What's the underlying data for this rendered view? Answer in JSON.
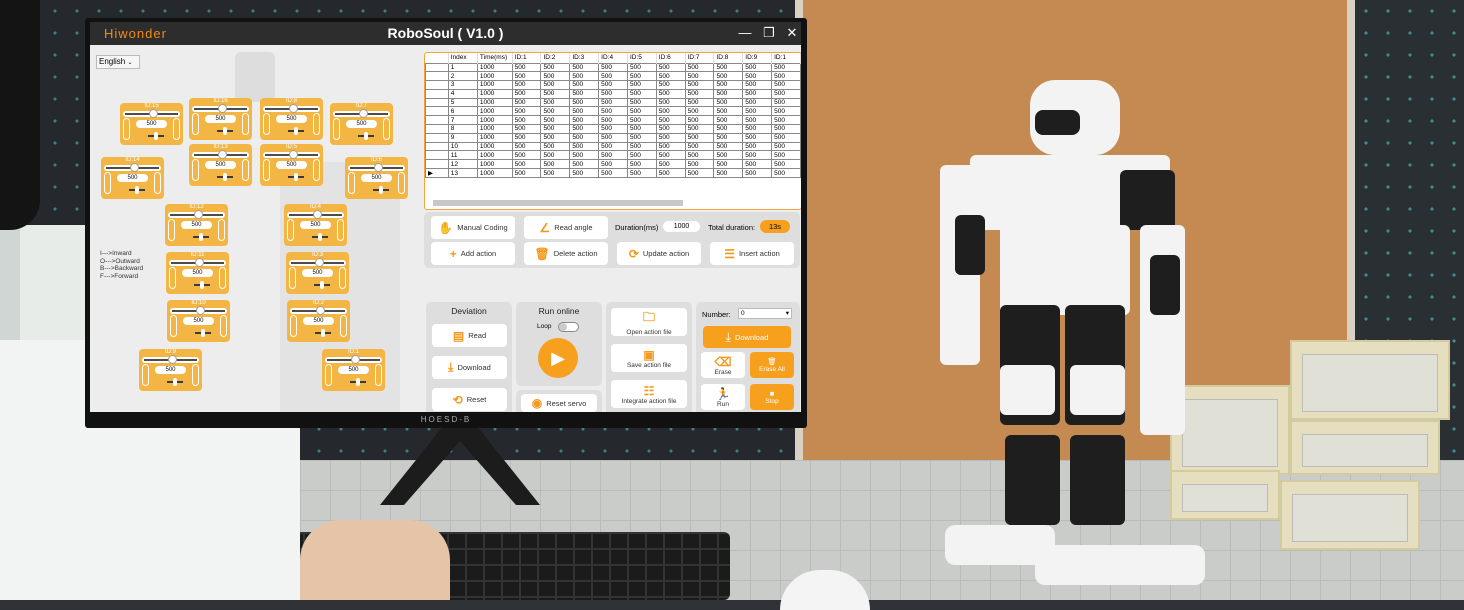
{
  "window": {
    "logo": "Hiwonder",
    "title": "RoboSoul ( V1.0 )",
    "controls": [
      "—",
      "❐",
      "✕"
    ]
  },
  "language": "English",
  "servos": [
    {
      "id": "ID:15",
      "value": "500"
    },
    {
      "id": "ID:16",
      "value": "500"
    },
    {
      "id": "ID:8",
      "value": "500"
    },
    {
      "id": "ID:7",
      "value": "500"
    },
    {
      "id": "ID:14",
      "value": "500"
    },
    {
      "id": "ID:13",
      "value": "500"
    },
    {
      "id": "ID:5",
      "value": "500"
    },
    {
      "id": "ID:6",
      "value": "500"
    },
    {
      "id": "ID:12",
      "value": "500"
    },
    {
      "id": "ID:4",
      "value": "500"
    },
    {
      "id": "ID:11",
      "value": "500"
    },
    {
      "id": "ID:3",
      "value": "500"
    },
    {
      "id": "ID:10",
      "value": "500"
    },
    {
      "id": "ID:2",
      "value": "500"
    },
    {
      "id": "ID:9",
      "value": "500"
    },
    {
      "id": "ID:1",
      "value": "500"
    }
  ],
  "legend": [
    "I--->Inward",
    "O--->Outward",
    "B--->Backward",
    "F--->Forward"
  ],
  "table": {
    "columns": [
      "",
      "Index",
      "Time(ms)",
      "ID:1",
      "ID:2",
      "ID:3",
      "ID:4",
      "ID:5",
      "ID:6",
      "ID:7",
      "ID:8",
      "ID:9",
      "ID:1"
    ],
    "rows": [
      [
        "",
        "1",
        "1000",
        "500",
        "500",
        "500",
        "500",
        "500",
        "500",
        "500",
        "500",
        "500",
        "500"
      ],
      [
        "",
        "2",
        "1000",
        "500",
        "500",
        "500",
        "500",
        "500",
        "500",
        "500",
        "500",
        "500",
        "500"
      ],
      [
        "",
        "3",
        "1000",
        "500",
        "500",
        "500",
        "500",
        "500",
        "500",
        "500",
        "500",
        "500",
        "500"
      ],
      [
        "",
        "4",
        "1000",
        "500",
        "500",
        "500",
        "500",
        "500",
        "500",
        "500",
        "500",
        "500",
        "500"
      ],
      [
        "",
        "5",
        "1000",
        "500",
        "500",
        "500",
        "500",
        "500",
        "500",
        "500",
        "500",
        "500",
        "500"
      ],
      [
        "",
        "6",
        "1000",
        "500",
        "500",
        "500",
        "500",
        "500",
        "500",
        "500",
        "500",
        "500",
        "500"
      ],
      [
        "",
        "7",
        "1000",
        "500",
        "500",
        "500",
        "500",
        "500",
        "500",
        "500",
        "500",
        "500",
        "500"
      ],
      [
        "",
        "8",
        "1000",
        "500",
        "500",
        "500",
        "500",
        "500",
        "500",
        "500",
        "500",
        "500",
        "500"
      ],
      [
        "",
        "9",
        "1000",
        "500",
        "500",
        "500",
        "500",
        "500",
        "500",
        "500",
        "500",
        "500",
        "500"
      ],
      [
        "",
        "10",
        "1000",
        "500",
        "500",
        "500",
        "500",
        "500",
        "500",
        "500",
        "500",
        "500",
        "500"
      ],
      [
        "",
        "11",
        "1000",
        "500",
        "500",
        "500",
        "500",
        "500",
        "500",
        "500",
        "500",
        "500",
        "500"
      ],
      [
        "",
        "12",
        "1000",
        "500",
        "500",
        "500",
        "500",
        "500",
        "500",
        "500",
        "500",
        "500",
        "500"
      ],
      [
        "▶",
        "13",
        "1000",
        "500",
        "500",
        "500",
        "500",
        "500",
        "500",
        "500",
        "500",
        "500",
        "500"
      ]
    ]
  },
  "actions": {
    "manual_coding": "Manual Coding",
    "read_angle": "Read angle",
    "duration_label": "Duration(ms)",
    "duration_value": "1000",
    "total_label": "Total duration:",
    "total_value": "13s",
    "add": "Add action",
    "delete": "Delete action",
    "update": "Update action",
    "insert": "Insert action"
  },
  "deviation": {
    "title": "Deviation",
    "read": "Read",
    "download": "Download",
    "reset": "Reset"
  },
  "run_online": {
    "title": "Run online",
    "loop": "Loop",
    "loop_on": false,
    "reset_servo": "Reset servo"
  },
  "files": {
    "open": "Open action file",
    "save": "Save action file",
    "integrate": "Integrate action file"
  },
  "device": {
    "number_label": "Number:",
    "number_value": "0",
    "download": "Download",
    "erase": "Erase",
    "erase_all": "Erase All",
    "run": "Run",
    "stop": "Stop"
  },
  "monitor_brand": "HOESD-B",
  "colors": {
    "accent": "#f7a01e",
    "title_bar": "#2d2d2d",
    "servo_card": "#f4b43c"
  }
}
